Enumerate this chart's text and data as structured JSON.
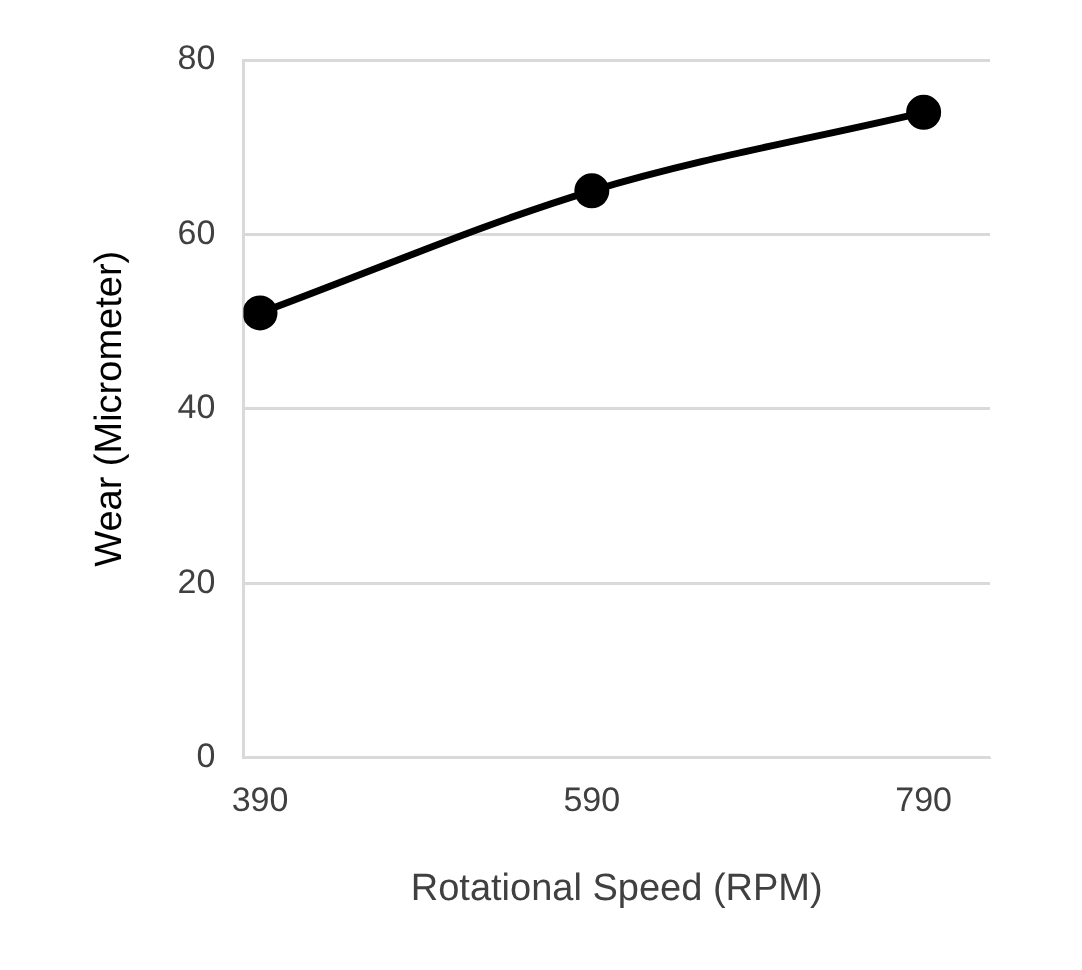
{
  "chart_data": {
    "type": "line",
    "xlabel": "Rotational Speed (RPM)",
    "ylabel": "Wear (Micrometer)",
    "x": [
      390,
      590,
      790
    ],
    "series": [
      {
        "color": "#000000",
        "values": [
          51,
          65,
          74
        ]
      }
    ],
    "xlim": [
      380,
      830
    ],
    "xticks": [
      390,
      590,
      790
    ],
    "ylim": [
      0,
      80
    ],
    "yticks": [
      0,
      20,
      40,
      60,
      80
    ],
    "grid": "y",
    "legend": false,
    "marker": "circle",
    "line_style": "solid"
  }
}
